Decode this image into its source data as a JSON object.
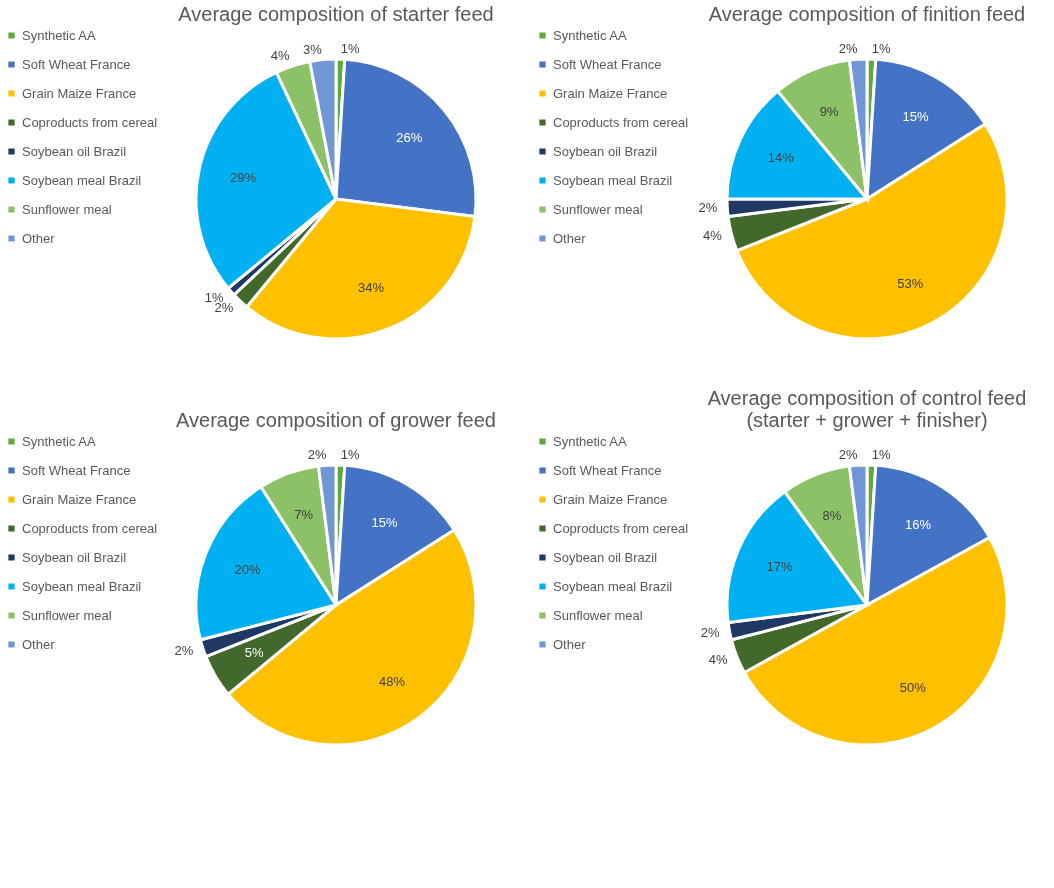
{
  "chart_data": [
    {
      "type": "pie",
      "title": "Average composition of starter feed",
      "legend": "left",
      "categories": [
        "Synthetic AA",
        "Soft Wheat France",
        "Grain Maize France",
        "Coproducts from cereal",
        "Soybean oil Brazil",
        "Soybean meal Brazil",
        "Sunflower meal",
        "Other"
      ],
      "values": [
        1,
        26,
        34,
        2,
        1,
        29,
        4,
        3
      ],
      "value_labels": [
        "1%",
        "26%",
        "34%",
        "2%",
        "1%",
        "29%",
        "4%",
        "3%"
      ],
      "colors": [
        "#5fa83c",
        "#4472c4",
        "#ffc000",
        "#43682b",
        "#203864",
        "#00b0f0",
        "#8cc168",
        "#7196d6"
      ]
    },
    {
      "type": "pie",
      "title": "Average composition of finition feed",
      "legend": "left",
      "categories": [
        "Synthetic AA",
        "Soft Wheat France",
        "Grain Maize France",
        "Coproducts from cereal",
        "Soybean oil Brazil",
        "Soybean meal Brazil",
        "Sunflower meal",
        "Other"
      ],
      "values": [
        1,
        15,
        53,
        4,
        2,
        14,
        9,
        2
      ],
      "value_labels": [
        "1%",
        "15%",
        "53%",
        "4%",
        "2%",
        "14%",
        "9%",
        "2%"
      ],
      "colors": [
        "#5fa83c",
        "#4472c4",
        "#ffc000",
        "#43682b",
        "#203864",
        "#00b0f0",
        "#8cc168",
        "#7196d6"
      ]
    },
    {
      "type": "pie",
      "title": "Average composition of grower feed",
      "legend": "left",
      "categories": [
        "Synthetic AA",
        "Soft Wheat France",
        "Grain Maize France",
        "Coproducts from cereal",
        "Soybean oil Brazil",
        "Soybean meal Brazil",
        "Sunflower meal",
        "Other"
      ],
      "values": [
        1,
        15,
        48,
        5,
        2,
        20,
        7,
        2
      ],
      "value_labels": [
        "1%",
        "15%",
        "48%",
        "5%",
        "2%",
        "20%",
        "7%",
        "2%"
      ],
      "colors": [
        "#5fa83c",
        "#4472c4",
        "#ffc000",
        "#43682b",
        "#203864",
        "#00b0f0",
        "#8cc168",
        "#7196d6"
      ]
    },
    {
      "type": "pie",
      "title": "Average composition of control feed\n(starter + grower + finisher)",
      "legend": "left",
      "categories": [
        "Synthetic AA",
        "Soft Wheat France",
        "Grain Maize France",
        "Coproducts from cereal",
        "Soybean oil Brazil",
        "Soybean meal Brazil",
        "Sunflower meal",
        "Other"
      ],
      "values": [
        1,
        16,
        50,
        4,
        2,
        17,
        8,
        2
      ],
      "value_labels": [
        "1%",
        "16%",
        "50%",
        "4%",
        "2%",
        "17%",
        "8%",
        "2%"
      ],
      "colors": [
        "#5fa83c",
        "#4472c4",
        "#ffc000",
        "#43682b",
        "#203864",
        "#00b0f0",
        "#8cc168",
        "#7196d6"
      ]
    }
  ]
}
